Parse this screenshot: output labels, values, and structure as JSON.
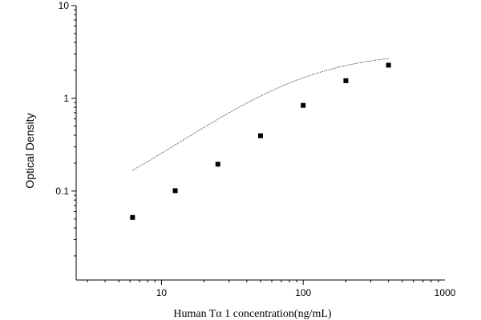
{
  "chart_data": {
    "type": "scatter",
    "title": "",
    "xlabel": "Human Tα 1 concentration(ng/mL)",
    "ylabel": "Optical Density",
    "xscale": "log",
    "yscale": "log",
    "xlim": [
      2.5,
      1000
    ],
    "ylim": [
      0.011,
      10
    ],
    "xticks": [
      {
        "value": 10,
        "label": "10"
      },
      {
        "value": 100,
        "label": "100"
      },
      {
        "value": 1000,
        "label": "1000"
      }
    ],
    "yticks": [
      {
        "value": 0.1,
        "label": "0.1"
      },
      {
        "value": 1,
        "label": "1"
      },
      {
        "value": 10,
        "label": "10"
      }
    ],
    "grid": false,
    "legend": "none",
    "series": [
      {
        "x": [
          6.25,
          12.5,
          25,
          50,
          100,
          200,
          400
        ],
        "y": [
          0.052,
          0.101,
          0.195,
          0.395,
          0.84,
          1.55,
          2.28
        ]
      }
    ],
    "fit_curve": "4-parameter logistic (dotted)",
    "colors": {
      "points": "#000000",
      "curve": "#333333",
      "axes": "#000000"
    }
  }
}
